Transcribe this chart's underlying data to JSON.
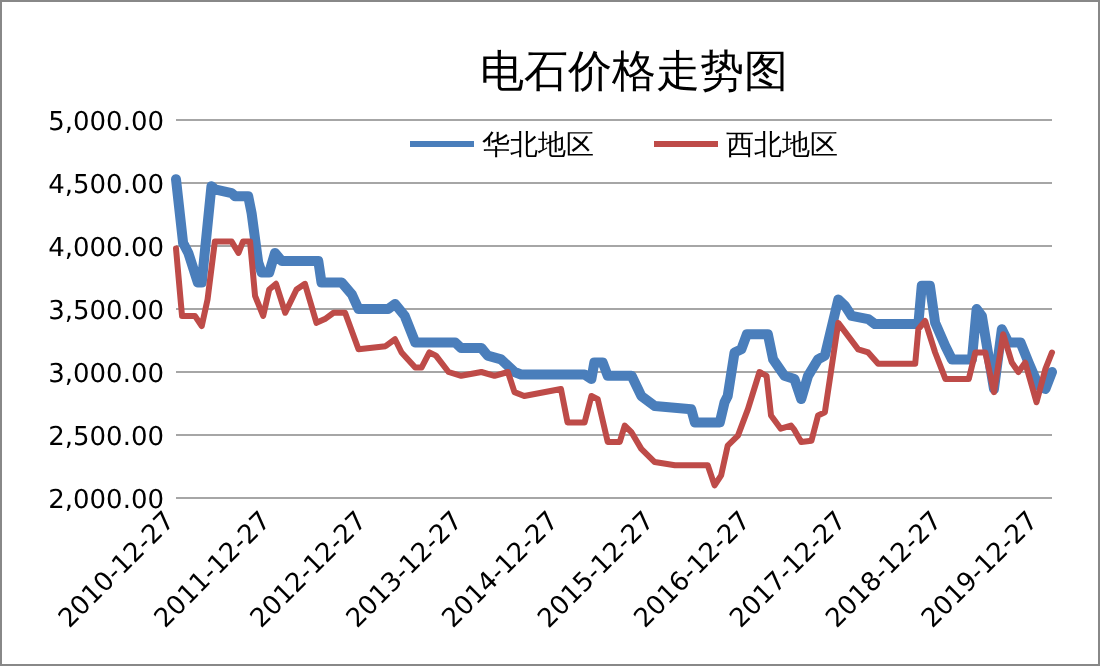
{
  "chart_data": {
    "type": "line",
    "title": "电石价格走势图",
    "legend": "top",
    "grid": "y",
    "xlim": [
      "2010-12-27",
      "2020-02-14"
    ],
    "xticks": [
      "2010-12-27",
      "2011-12-27",
      "2012-12-27",
      "2013-12-27",
      "2014-12-27",
      "2015-12-27",
      "2016-12-27",
      "2017-12-27",
      "2018-12-27",
      "2019-12-27"
    ],
    "ylim": [
      2000,
      5000
    ],
    "yticks": [
      {
        "value": 2000,
        "label": "2,000.00"
      },
      {
        "value": 2500,
        "label": "2,500.00"
      },
      {
        "value": 3000,
        "label": "3,000.00"
      },
      {
        "value": 3500,
        "label": "3,500.00"
      },
      {
        "value": 4000,
        "label": "4,000.00"
      },
      {
        "value": 4500,
        "label": "4,500.00"
      },
      {
        "value": 5000,
        "label": "5,000.00"
      }
    ],
    "series": [
      {
        "name": "华北地区",
        "color": "#4a7ebb",
        "x": [
          "2010-12-27",
          "2011-01-23",
          "2011-02-12",
          "2011-03-20",
          "2011-04-04",
          "2011-05-11",
          "2011-05-24",
          "2011-07-27",
          "2011-08-09",
          "2011-09-28",
          "2011-10-11",
          "2011-11-05",
          "2011-11-18",
          "2011-12-17",
          "2012-01-08",
          "2012-02-03",
          "2012-06-21",
          "2012-07-03",
          "2012-09-18",
          "2012-10-27",
          "2012-11-21",
          "2013-03-14",
          "2013-04-09",
          "2013-05-16",
          "2013-06-25",
          "2013-11-24",
          "2013-12-17",
          "2014-03-04",
          "2014-03-28",
          "2014-05-18",
          "2014-07-08",
          "2014-08-02",
          "2015-04-01",
          "2015-04-27",
          "2015-05-08",
          "2015-06-09",
          "2015-06-28",
          "2015-09-27",
          "2015-11-03",
          "2015-12-24",
          "2016-05-11",
          "2016-05-25",
          "2016-08-28",
          "2016-09-15",
          "2016-09-27",
          "2016-10-23",
          "2016-11-18",
          "2016-12-09",
          "2017-02-27",
          "2017-03-19",
          "2017-05-01",
          "2017-06-08",
          "2017-07-04",
          "2017-07-30",
          "2017-09-06",
          "2017-10-02",
          "2017-11-22",
          "2017-12-18",
          "2018-01-12",
          "2018-03-16",
          "2018-04-11",
          "2018-09-23",
          "2018-10-06",
          "2018-11-06",
          "2018-11-26",
          "2019-01-04",
          "2019-01-29",
          "2019-04-15",
          "2019-05-03",
          "2019-05-23",
          "2019-07-08",
          "2019-08-07",
          "2019-09-01",
          "2019-10-17",
          "2019-11-17",
          "2019-12-25",
          "2020-01-20",
          "2020-02-14"
        ],
        "values": [
          4530,
          4025,
          3945,
          3710,
          3710,
          4475,
          4450,
          4420,
          4395,
          4395,
          4260,
          3870,
          3790,
          3790,
          3945,
          3880,
          3880,
          3710,
          3710,
          3615,
          3500,
          3500,
          3540,
          3445,
          3235,
          3235,
          3190,
          3190,
          3130,
          3100,
          3000,
          2980,
          2980,
          2945,
          3075,
          3075,
          2970,
          2970,
          2810,
          2730,
          2705,
          2600,
          2600,
          2760,
          2810,
          3155,
          3180,
          3300,
          3300,
          3100,
          2970,
          2945,
          2785,
          2970,
          3100,
          3130,
          3575,
          3525,
          3445,
          3420,
          3380,
          3380,
          3685,
          3685,
          3390,
          3205,
          3100,
          3100,
          3500,
          3445,
          2865,
          3340,
          3235,
          3235,
          3075,
          2890,
          2865,
          3000
        ]
      },
      {
        "name": "西北地区",
        "color": "#be4b48",
        "x": [
          "2010-12-27",
          "2011-01-19",
          "2011-03-09",
          "2011-04-04",
          "2011-04-26",
          "2011-05-24",
          "2011-07-27",
          "2011-08-22",
          "2011-09-08",
          "2011-10-05",
          "2011-10-24",
          "2011-11-24",
          "2011-12-17",
          "2012-01-12",
          "2012-02-16",
          "2012-03-30",
          "2012-05-01",
          "2012-06-14",
          "2012-07-16",
          "2012-08-18",
          "2012-10-01",
          "2012-11-21",
          "2013-03-04",
          "2013-04-09",
          "2013-05-04",
          "2013-06-25",
          "2013-07-19",
          "2013-08-18",
          "2013-09-12",
          "2013-10-30",
          "2013-12-17",
          "2014-03-04",
          "2014-04-23",
          "2014-06-13",
          "2014-07-08",
          "2014-08-14",
          "2015-01-01",
          "2015-01-26",
          "2015-04-01",
          "2015-04-27",
          "2015-05-21",
          "2015-06-28",
          "2015-08-13",
          "2015-09-01",
          "2015-09-27",
          "2015-11-03",
          "2015-12-24",
          "2016-03-10",
          "2016-07-13",
          "2016-08-08",
          "2016-09-02",
          "2016-09-27",
          "2016-11-05",
          "2016-12-13",
          "2017-01-26",
          "2017-02-22",
          "2017-03-11",
          "2017-04-17",
          "2017-05-26",
          "2017-06-08",
          "2017-07-04",
          "2017-08-12",
          "2017-09-06",
          "2017-10-02",
          "2017-11-22",
          "2017-12-30",
          "2018-02-06",
          "2018-03-16",
          "2018-04-23",
          "2018-09-11",
          "2018-09-23",
          "2018-10-19",
          "2018-11-26",
          "2019-01-04",
          "2019-04-03",
          "2019-04-28",
          "2019-06-05",
          "2019-07-08",
          "2019-08-12",
          "2019-09-14",
          "2019-10-09",
          "2019-11-04",
          "2019-12-17",
          "2020-01-20",
          "2020-02-14"
        ],
        "values": [
          3980,
          3445,
          3445,
          3365,
          3575,
          4035,
          4035,
          3945,
          4035,
          4035,
          3605,
          3445,
          3655,
          3700,
          3470,
          3655,
          3700,
          3390,
          3420,
          3470,
          3470,
          3180,
          3205,
          3260,
          3155,
          3035,
          3035,
          3155,
          3130,
          3000,
          2970,
          3000,
          2970,
          3000,
          2840,
          2810,
          2865,
          2600,
          2600,
          2810,
          2785,
          2445,
          2445,
          2575,
          2520,
          2390,
          2285,
          2260,
          2260,
          2100,
          2180,
          2415,
          2495,
          2705,
          3000,
          2970,
          2655,
          2550,
          2575,
          2540,
          2445,
          2455,
          2655,
          2680,
          3390,
          3285,
          3180,
          3155,
          3065,
          3065,
          3340,
          3405,
          3155,
          2945,
          2945,
          3155,
          3155,
          2840,
          3300,
          3075,
          3000,
          3075,
          2760,
          3025,
          3155
        ]
      }
    ]
  }
}
